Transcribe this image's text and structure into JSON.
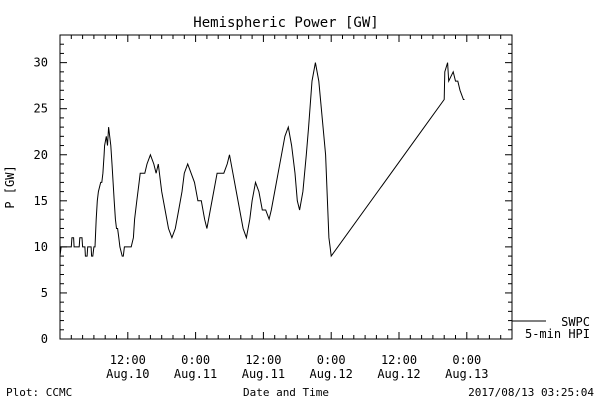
{
  "chart_data": {
    "type": "line",
    "title": "Hemispheric Power [GW]",
    "ylabel": "P [GW]",
    "xlabel": "Date and Time",
    "ylim": [
      0,
      33
    ],
    "xlim": [
      0,
      40
    ],
    "x_unit": "hours since 2017-08-10 06:00 UT",
    "y_ticks": [
      0,
      5,
      10,
      15,
      20,
      25,
      30
    ],
    "x_ticks": [
      {
        "x": 6,
        "line1": "12:00",
        "line2": "Aug.10"
      },
      {
        "x": 12,
        "line1": "0:00",
        "line2": "Aug.11"
      },
      {
        "x": 18,
        "line1": "12:00",
        "line2": "Aug.11"
      },
      {
        "x": 24,
        "line1": "0:00",
        "line2": "Aug.12"
      },
      {
        "x": 30,
        "line1": "12:00",
        "line2": "Aug.12"
      },
      {
        "x": 36,
        "line1": "0:00",
        "line2": "Aug.13"
      }
    ],
    "grid": false,
    "series": [
      {
        "name": "SWPC 5-min HPI",
        "x": [
          0,
          0.1,
          0.2,
          1.0,
          1.05,
          1.2,
          1.25,
          1.7,
          1.75,
          1.95,
          2.0,
          2.2,
          2.25,
          2.4,
          2.45,
          2.75,
          2.8,
          2.9,
          3.0,
          3.1,
          3.2,
          3.3,
          3.4,
          3.6,
          3.7,
          3.8,
          3.85,
          3.9,
          3.95,
          4.1,
          4.2,
          4.3,
          4.4,
          4.5,
          4.6,
          4.7,
          4.8,
          4.9,
          5.0,
          5.1,
          5.2,
          5.3,
          5.5,
          5.6,
          5.7,
          5.8,
          6.0,
          6.1,
          6.3,
          6.5,
          6.6,
          6.8,
          7.0,
          7.1,
          7.5,
          7.7,
          8.0,
          8.3,
          8.5,
          8.7,
          9.0,
          9.3,
          9.6,
          9.9,
          10.2,
          10.5,
          10.8,
          11.0,
          11.3,
          11.6,
          11.9,
          12.2,
          12.5,
          12.8,
          13.0,
          13.3,
          13.6,
          13.9,
          14.2,
          14.5,
          14.8,
          15.0,
          15.3,
          15.6,
          15.9,
          16.2,
          16.5,
          16.8,
          17.0,
          17.3,
          17.6,
          17.9,
          18.2,
          18.5,
          18.7,
          19.0,
          19.3,
          19.6,
          19.9,
          20.2,
          20.5,
          20.8,
          21.0,
          21.2,
          21.5,
          21.8,
          22.0,
          22.3,
          22.6,
          22.9,
          23.2,
          23.5,
          23.7,
          23.8,
          23.9,
          24.0,
          34.0,
          34.05,
          34.3,
          34.4,
          34.8,
          35.0,
          35.2,
          35.4,
          35.7,
          35.8
        ],
        "values": [
          9,
          10,
          10,
          10,
          11,
          11,
          10,
          10,
          11,
          11,
          10,
          10,
          9,
          9,
          10,
          10,
          9,
          9,
          10,
          10,
          13,
          15,
          16,
          17,
          17,
          18,
          19,
          20,
          21,
          22,
          21,
          23,
          22,
          21,
          19,
          17,
          15,
          13,
          12,
          12,
          11,
          10,
          9,
          9,
          10,
          10,
          10,
          10,
          10,
          11,
          13,
          15,
          17,
          18,
          18,
          19,
          20,
          19,
          18,
          19,
          16,
          14,
          12,
          11,
          12,
          14,
          16,
          18,
          19,
          18,
          17,
          15,
          15,
          13,
          12,
          14,
          16,
          18,
          18,
          18,
          19,
          20,
          18,
          16,
          14,
          12,
          11,
          13,
          15,
          17,
          16,
          14,
          14,
          13,
          14,
          16,
          18,
          20,
          22,
          23,
          21,
          18,
          15,
          14,
          16,
          20,
          23,
          28,
          30,
          28,
          24,
          20,
          14,
          11,
          10,
          9,
          26,
          29,
          30,
          28,
          29,
          28,
          28,
          27,
          26,
          26
        ]
      }
    ],
    "legend": {
      "position": "bottom-right",
      "line1": "SWPC",
      "line2": "5-min HPI"
    },
    "footer_left": "Plot: CCMC",
    "footer_right": "2017/08/13 03:25:04"
  }
}
